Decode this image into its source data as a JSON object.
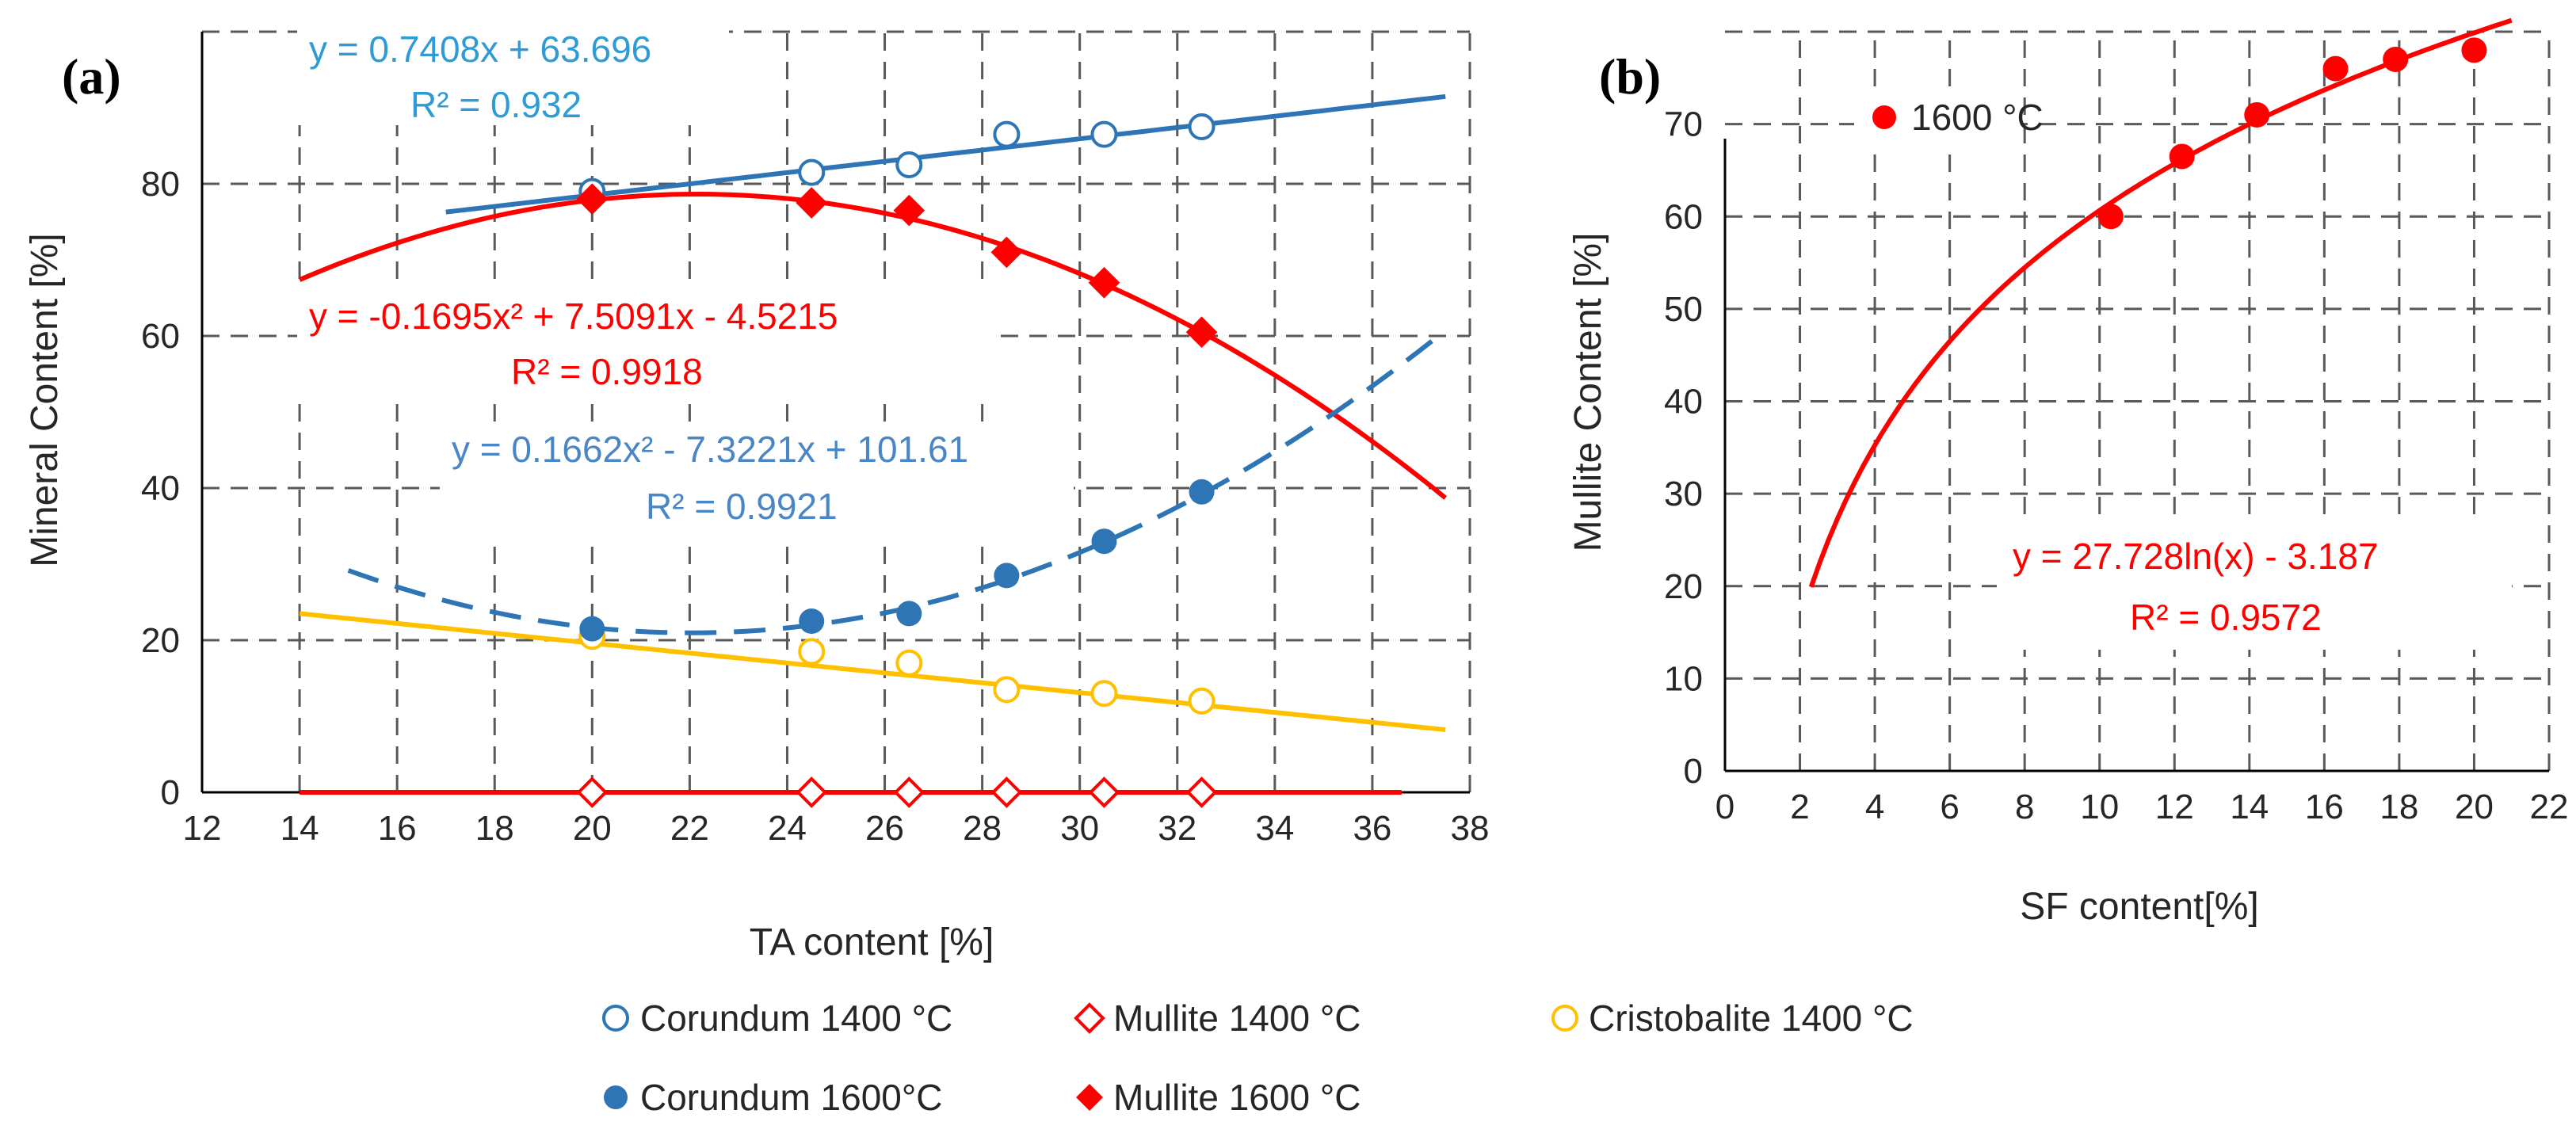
{
  "chart_data": [
    {
      "panel": "(a)",
      "type": "scatter",
      "xlabel": "TA content [%]",
      "ylabel": "Mineral Content [%]",
      "xlim": [
        12,
        38
      ],
      "ylim": [
        0,
        100
      ],
      "xticks": [
        12,
        14,
        16,
        18,
        20,
        22,
        24,
        26,
        28,
        30,
        32,
        34,
        36,
        38
      ],
      "yticks": [
        0,
        20,
        40,
        60,
        80
      ],
      "grid": true,
      "legend_position": "bottom",
      "series": [
        {
          "name": "Corundum 1400 °C",
          "marker": "open-circle",
          "color": "#2E75B6",
          "x": [
            20,
            24.5,
            26.5,
            28.5,
            30.5,
            32.5
          ],
          "y": [
            79,
            81.5,
            82.5,
            86.5,
            86.5,
            87.5
          ]
        },
        {
          "name": "Mullite 1400 °C",
          "marker": "open-diamond",
          "color": "#FF0000",
          "x": [
            20,
            24.5,
            26.5,
            28.5,
            30.5,
            32.5
          ],
          "y": [
            0,
            0,
            0,
            0,
            0,
            0
          ]
        },
        {
          "name": "Cristobalite 1400 °C",
          "marker": "open-circle",
          "color": "#FFC000",
          "x": [
            20,
            24.5,
            26.5,
            28.5,
            30.5,
            32.5
          ],
          "y": [
            20.5,
            18.5,
            17,
            13.5,
            13,
            12
          ]
        },
        {
          "name": "Corundum 1600°C",
          "marker": "filled-circle",
          "color": "#2E75B6",
          "x": [
            20,
            24.5,
            26.5,
            28.5,
            30.5,
            32.5
          ],
          "y": [
            21.5,
            22.5,
            23.5,
            28.5,
            33,
            39.5
          ]
        },
        {
          "name": "Mullite 1600 °C",
          "marker": "filled-diamond",
          "color": "#FF0000",
          "x": [
            20,
            24.5,
            26.5,
            28.5,
            30.5,
            32.5
          ],
          "y": [
            78,
            77.5,
            76.5,
            71,
            67,
            60.5
          ]
        }
      ],
      "trendlines": [
        {
          "kind": "linear",
          "color": "#2E75B6",
          "dashed": false,
          "coef": [
            63.696,
            0.7408
          ],
          "x_range": [
            17,
            37.5
          ],
          "equation": "y = 0.7408x + 63.696",
          "r2": "R² = 0.932"
        },
        {
          "kind": "poly2",
          "color": "#FF0000",
          "dashed": false,
          "coef": [
            -4.5215,
            7.5091,
            -0.1695
          ],
          "x_range": [
            14,
            37.5
          ],
          "equation": "y = -0.1695x² + 7.5091x - 4.5215",
          "r2": "R² = 0.9918"
        },
        {
          "kind": "poly2",
          "color": "#2E75B6",
          "dashed": true,
          "coef": [
            101.61,
            -7.3221,
            0.1662
          ],
          "x_range": [
            15,
            37.5
          ],
          "equation": "y = 0.1662x² - 7.3221x + 101.61",
          "r2": "R² = 0.9921"
        },
        {
          "kind": "linear",
          "color": "#FFC000",
          "dashed": false,
          "coef": [
            32.6,
            -0.65
          ],
          "x_range": [
            14,
            37.5
          ]
        },
        {
          "kind": "linear",
          "color": "#FF0000",
          "dashed": false,
          "coef": [
            0,
            0
          ],
          "x_range": [
            14,
            36.6
          ]
        }
      ]
    },
    {
      "panel": "(b)",
      "type": "scatter",
      "xlabel": "SF content[%]",
      "ylabel": "Mullite Content [%]",
      "xlim": [
        0,
        22
      ],
      "ylim": [
        0,
        80
      ],
      "xticks": [
        0,
        2,
        4,
        6,
        8,
        10,
        12,
        14,
        16,
        18,
        20,
        22
      ],
      "yticks": [
        0,
        10,
        20,
        30,
        40,
        50,
        60,
        70
      ],
      "grid": true,
      "legend_position": "top-left",
      "series": [
        {
          "name": "1600 °C",
          "marker": "filled-circle",
          "color": "#FF0000",
          "x": [
            10.3,
            12.2,
            14.2,
            16.3,
            17.9,
            20
          ],
          "y": [
            60,
            66.5,
            71,
            76,
            77,
            78
          ]
        }
      ],
      "trendlines": [
        {
          "kind": "log",
          "color": "#FF0000",
          "dashed": false,
          "coef": [
            -3.187,
            27.728
          ],
          "x_range": [
            2.3,
            21
          ],
          "equation": "y = 27.728ln(x) - 3.187",
          "r2": "R² = 0.9572"
        }
      ]
    }
  ]
}
